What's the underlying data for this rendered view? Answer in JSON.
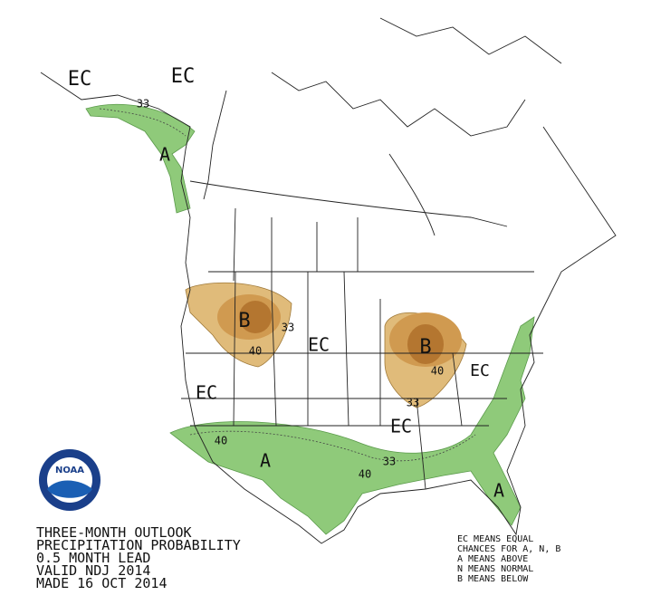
{
  "map": {
    "labels": [
      "EC",
      "EC",
      "33",
      "A",
      "B",
      "33",
      "40",
      "EC",
      "B",
      "40",
      "EC",
      "33",
      "EC",
      "EC",
      "40",
      "A",
      "33",
      "40",
      "A"
    ]
  },
  "title": [
    "THREE-MONTH OUTLOOK",
    "PRECIPITATION PROBABILITY",
    "0.5 MONTH LEAD",
    "VALID NDJ 2014",
    "MADE 16 OCT 2014"
  ],
  "legend": [
    "EC MEANS EQUAL",
    "CHANCES FOR A, N, B",
    "A MEANS ABOVE",
    "N MEANS NORMAL",
    "B MEANS BELOW"
  ],
  "logo": "NOAA"
}
